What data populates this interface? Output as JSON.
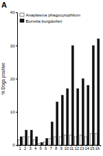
{
  "chart_data": {
    "type": "bar",
    "title": "A",
    "categories": [
      "1",
      "2",
      "3",
      "4",
      "5",
      "6",
      "7",
      "8",
      "9",
      "10",
      "11",
      "12",
      "13",
      "14",
      "15",
      "16"
    ],
    "series": [
      {
        "name": "Anaplasma phagocytophilum",
        "color": "#ffffff",
        "values": [
          1.5,
          2.5,
          2.5,
          1.5,
          0.5,
          1.0,
          2.0,
          2.5,
          2.5,
          3.0,
          3.0,
          2.5,
          3.0,
          2.5,
          3.5,
          3.5
        ]
      },
      {
        "name": "Borrelia burgdorferi",
        "color": "#111111",
        "values": [
          2.5,
          4.5,
          4.5,
          2.5,
          0.8,
          2.0,
          7.0,
          13.0,
          15.0,
          17.0,
          30.0,
          17.0,
          20.0,
          18.0,
          30.0,
          32.0
        ]
      }
    ],
    "ylabel": "% Dogs positive",
    "ylim": [
      0,
      40
    ],
    "yticks": [
      0,
      10,
      20,
      30,
      40
    ],
    "grid": false,
    "legend": "upper left"
  }
}
